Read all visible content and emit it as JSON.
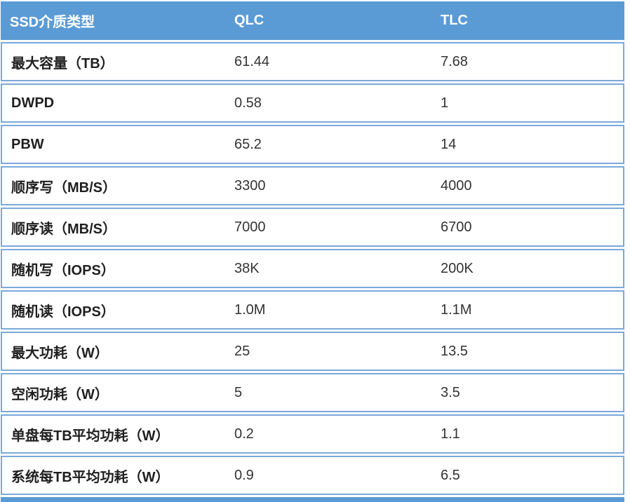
{
  "chart_data": {
    "type": "table",
    "columns": [
      "SSD介质类型",
      "QLC",
      "TLC"
    ],
    "rows": [
      {
        "label": "最大容量（TB）",
        "qlc": "61.44",
        "tlc": "7.68"
      },
      {
        "label": "DWPD",
        "qlc": "0.58",
        "tlc": "1"
      },
      {
        "label": "PBW",
        "qlc": "65.2",
        "tlc": "14"
      },
      {
        "label": "顺序写（MB/S）",
        "qlc": "3300",
        "tlc": "4000"
      },
      {
        "label": "顺序读（MB/S）",
        "qlc": "7000",
        "tlc": "6700"
      },
      {
        "label": "随机写（IOPS）",
        "qlc": "38K",
        "tlc": "200K"
      },
      {
        "label": "随机读（IOPS）",
        "qlc": "1.0M",
        "tlc": "1.1M"
      },
      {
        "label": "最大功耗（W）",
        "qlc": "25",
        "tlc": "13.5"
      },
      {
        "label": "空闲功耗（W）",
        "qlc": "5",
        "tlc": "3.5"
      },
      {
        "label": "单盘每TB平均功耗（W）",
        "qlc": "0.2",
        "tlc": "1.1"
      },
      {
        "label": "系统每TB平均功耗（W）",
        "qlc": "0.9",
        "tlc": "6.5"
      }
    ]
  },
  "colors": {
    "header_bg": "#5B9BD5",
    "header_text": "#FFFFFF",
    "row_border": "#7BA9DA",
    "label_text": "#1F1F1F",
    "value_text": "#333333",
    "footer_bar": "#5B9BD5"
  }
}
